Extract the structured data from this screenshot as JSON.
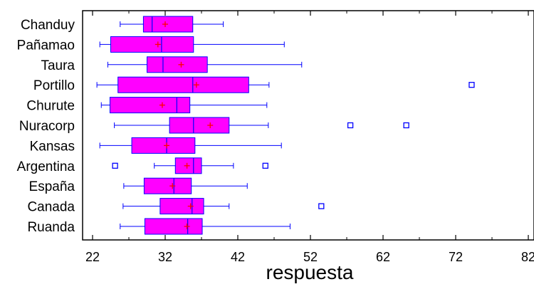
{
  "chart_data": {
    "type": "boxplot",
    "title": "",
    "xlabel": "respuesta",
    "ylabel": "",
    "xlim": [
      19.5,
      83
    ],
    "xticks": [
      22,
      32,
      42,
      52,
      62,
      72,
      82
    ],
    "tick_labels": [
      "22",
      "32",
      "42",
      "52",
      "62",
      "72",
      "82"
    ],
    "orientation": "horizontal",
    "grid": false,
    "colors": {
      "box_fill": "#ff00ff",
      "box_stroke": "#0000ff",
      "whisker": "#0000ff",
      "mean": "#ff0000",
      "outlier": "#0000ff"
    },
    "groups": [
      {
        "label": "Chanduy",
        "whisker_low": 25.8,
        "q1": 29.0,
        "median": 30.2,
        "q3": 35.8,
        "whisker_high": 40.0,
        "mean": 32.0,
        "outliers": []
      },
      {
        "label": "Pañamao",
        "whisker_low": 23.0,
        "q1": 24.5,
        "median": 31.5,
        "q3": 35.9,
        "whisker_high": 48.4,
        "mean": 31.0,
        "outliers": []
      },
      {
        "label": "Taura",
        "whisker_low": 24.1,
        "q1": 29.5,
        "median": 31.7,
        "q3": 37.8,
        "whisker_high": 50.8,
        "mean": 34.2,
        "outliers": []
      },
      {
        "label": "Portillo",
        "whisker_low": 22.6,
        "q1": 25.5,
        "median": 35.8,
        "q3": 43.5,
        "whisker_high": 46.3,
        "mean": 36.3,
        "outliers": [
          74.2
        ]
      },
      {
        "label": "Churute",
        "whisker_low": 23.2,
        "q1": 24.4,
        "median": 33.6,
        "q3": 35.4,
        "whisker_high": 46.0,
        "mean": 31.6,
        "outliers": []
      },
      {
        "label": "Nuracorp",
        "whisker_low": 25.0,
        "q1": 32.6,
        "median": 35.9,
        "q3": 40.8,
        "whisker_high": 46.2,
        "mean": 38.2,
        "outliers": [
          57.5,
          65.2
        ]
      },
      {
        "label": "Kansas",
        "whisker_low": 23.0,
        "q1": 27.4,
        "median": 32.2,
        "q3": 36.1,
        "whisker_high": 48.0,
        "mean": 32.2,
        "outliers": []
      },
      {
        "label": "Argentina",
        "whisker_low": 30.5,
        "q1": 33.4,
        "median": 35.9,
        "q3": 37.0,
        "whisker_high": 41.4,
        "mean": 35.0,
        "outliers": [
          25.1,
          45.8
        ]
      },
      {
        "label": "España",
        "whisker_low": 26.3,
        "q1": 29.1,
        "median": 33.2,
        "q3": 35.6,
        "whisker_high": 43.3,
        "mean": 33.0,
        "outliers": []
      },
      {
        "label": "Canada",
        "whisker_low": 26.2,
        "q1": 31.3,
        "median": 35.7,
        "q3": 37.3,
        "whisker_high": 40.8,
        "mean": 35.5,
        "outliers": [
          53.5
        ]
      },
      {
        "label": "Ruanda",
        "whisker_low": 25.8,
        "q1": 29.2,
        "median": 35.1,
        "q3": 37.1,
        "whisker_high": 49.2,
        "mean": 35.0,
        "outliers": []
      }
    ]
  }
}
